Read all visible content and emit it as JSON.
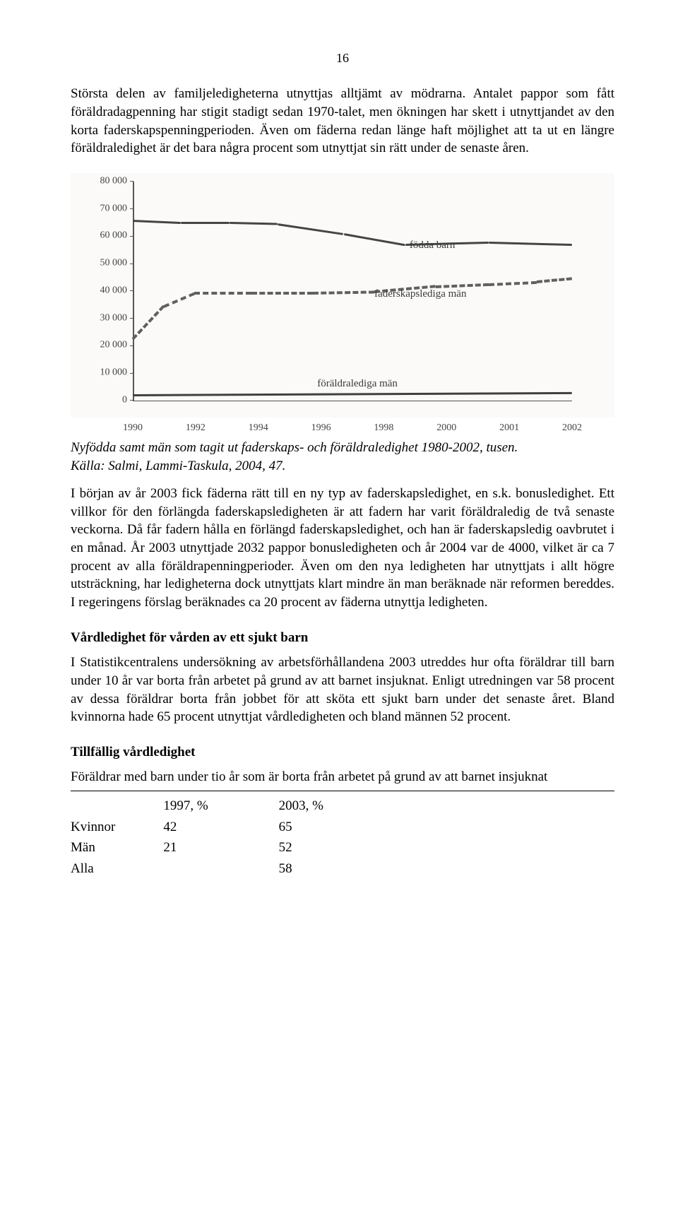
{
  "page_number": "16",
  "para1": "Största delen av familjeledigheterna utnyttjas alltjämt av mödrarna. Antalet pappor som fått föräldradagpenning har stigit stadigt sedan 1970-talet, men ökningen har skett i utnyttjandet av den korta faderskapspenningperioden. Även om fäderna redan länge haft möjlighet att ta ut en längre föräldraledighet är det bara några procent som utnyttjat sin rätt under de senaste åren.",
  "chart": {
    "type": "line",
    "y": {
      "min": 0,
      "max": 80000,
      "ticks": [
        "0",
        "10 000",
        "20 000",
        "30 000",
        "40 000",
        "50 000",
        "60 000",
        "70 000",
        "80 000"
      ]
    },
    "x": [
      "1990",
      "1992",
      "1994",
      "1996",
      "1998",
      "2000",
      "2001",
      "2002"
    ],
    "bg": "#fbfaf8",
    "axis_color": "#555",
    "s1": {
      "label": "födda barn",
      "color": "#454545",
      "label_left_pct": 63,
      "label_top_pct": 26,
      "points_pct": [
        [
          0,
          18
        ],
        [
          11,
          19
        ],
        [
          22,
          19
        ],
        [
          33,
          19.5
        ],
        [
          48,
          24
        ],
        [
          62,
          29
        ],
        [
          81,
          28
        ],
        [
          100,
          29
        ]
      ]
    },
    "s2": {
      "label": "faderskapslediga män",
      "color": "#606060",
      "label_left_pct": 55,
      "label_top_pct": 48,
      "points_pct": [
        [
          0,
          72
        ],
        [
          7,
          57
        ],
        [
          14,
          51
        ],
        [
          27,
          51
        ],
        [
          41,
          51
        ],
        [
          55,
          50.5
        ],
        [
          69,
          48
        ],
        [
          81,
          47
        ],
        [
          92,
          46
        ],
        [
          100,
          44.5
        ]
      ]
    },
    "s3": {
      "label": "föräldralediga män",
      "color": "#404040",
      "label_left_pct": 42,
      "label_top_pct": 89,
      "points_pct": [
        [
          0,
          97.5
        ],
        [
          100,
          96.5
        ]
      ]
    }
  },
  "caption1": "Nyfödda samt män som tagit ut faderskaps- och föräldraledighet 1980-2002, tusen.",
  "caption2": "Källa: Salmi, Lammi-Taskula, 2004, 47.",
  "para2": "I början av år 2003 fick fäderna rätt till en ny typ av faderskapsledighet, en s.k. bonusledighet. Ett villkor för den förlängda faderskapsledigheten är att fadern har varit föräldraledig de två senaste veckorna. Då får fadern hålla en förlängd faderskapsledighet, och han är faderskapsledig oavbrutet i en månad. År 2003 utnyttjade 2032 pappor bonusledigheten och år 2004 var de 4000, vilket är ca 7 procent av alla föräldrapenningperioder. Även om den nya ledigheten har utnyttjats i allt högre utsträckning, har ledigheterna dock utnyttjats klart mindre än man beräknade när reformen bereddes. I regeringens förslag beräknades ca 20 procent av fäderna utnyttja ledigheten.",
  "h1": "Vårdledighet för vården av ett sjukt barn",
  "para3": "I Statistikcentralens undersökning av arbetsförhållandena 2003 utreddes hur ofta föräldrar till barn under 10 år var borta från arbetet på grund av att barnet insjuknat. Enligt utredningen var 58 procent av dessa föräldrar borta från jobbet för att sköta ett sjukt barn under det senaste året. Bland kvinnorna hade 65 procent utnyttjat vårdledigheten och bland männen 52 procent.",
  "h2": "Tillfällig vårdledighet",
  "table": {
    "caption": "Föräldrar med barn under tio år som är borta från arbetet på grund av att barnet insjuknat",
    "cols": [
      "",
      "1997, %",
      "2003, %"
    ],
    "rows": [
      [
        "Kvinnor",
        "42",
        "65"
      ],
      [
        "Män",
        "21",
        "52"
      ],
      [
        "Alla",
        "",
        "58"
      ]
    ]
  }
}
